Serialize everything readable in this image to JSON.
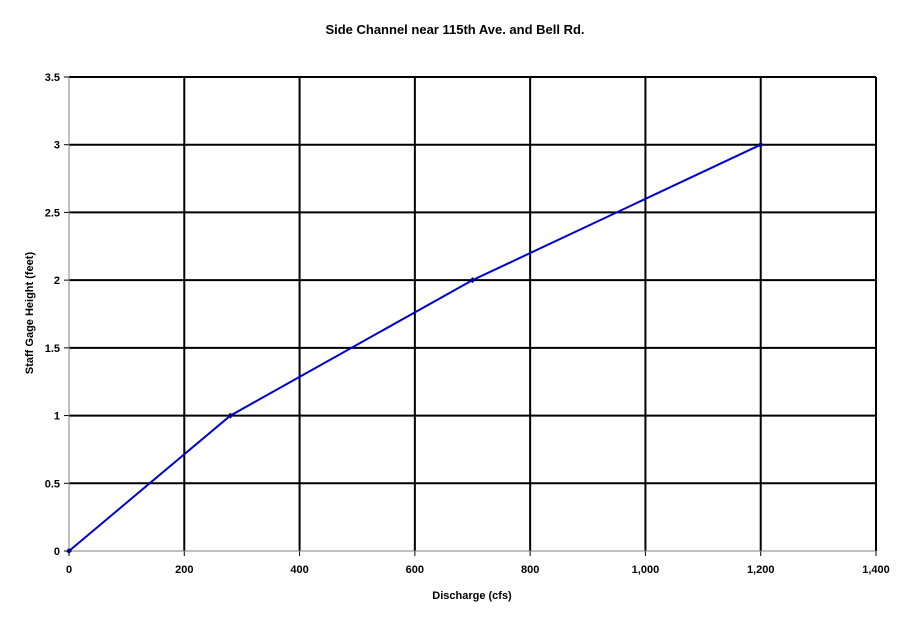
{
  "chart_data": {
    "type": "line",
    "title": "Side Channel near 115th Ave. and Bell Rd.",
    "xlabel": "Discharge (cfs)",
    "ylabel": "Staff Gage Height (feet)",
    "xlim": [
      0,
      1400
    ],
    "ylim": [
      0,
      3.5
    ],
    "x_ticks": [
      0,
      200,
      400,
      600,
      800,
      1000,
      1200,
      1400
    ],
    "x_tick_labels": [
      "0",
      "200",
      "400",
      "600",
      "800",
      "1,000",
      "1,200",
      "1,400"
    ],
    "y_ticks": [
      0,
      0.5,
      1,
      1.5,
      2,
      2.5,
      3,
      3.5
    ],
    "y_tick_labels": [
      "0",
      "0.5",
      "1",
      "1.5",
      "2",
      "2.5",
      "3",
      "3.5"
    ],
    "grid": true,
    "series": [
      {
        "color": "#0000cc",
        "marker_color": "#000080",
        "x": [
          0,
          280,
          700,
          1200
        ],
        "y": [
          0,
          1,
          2,
          3
        ]
      }
    ]
  }
}
